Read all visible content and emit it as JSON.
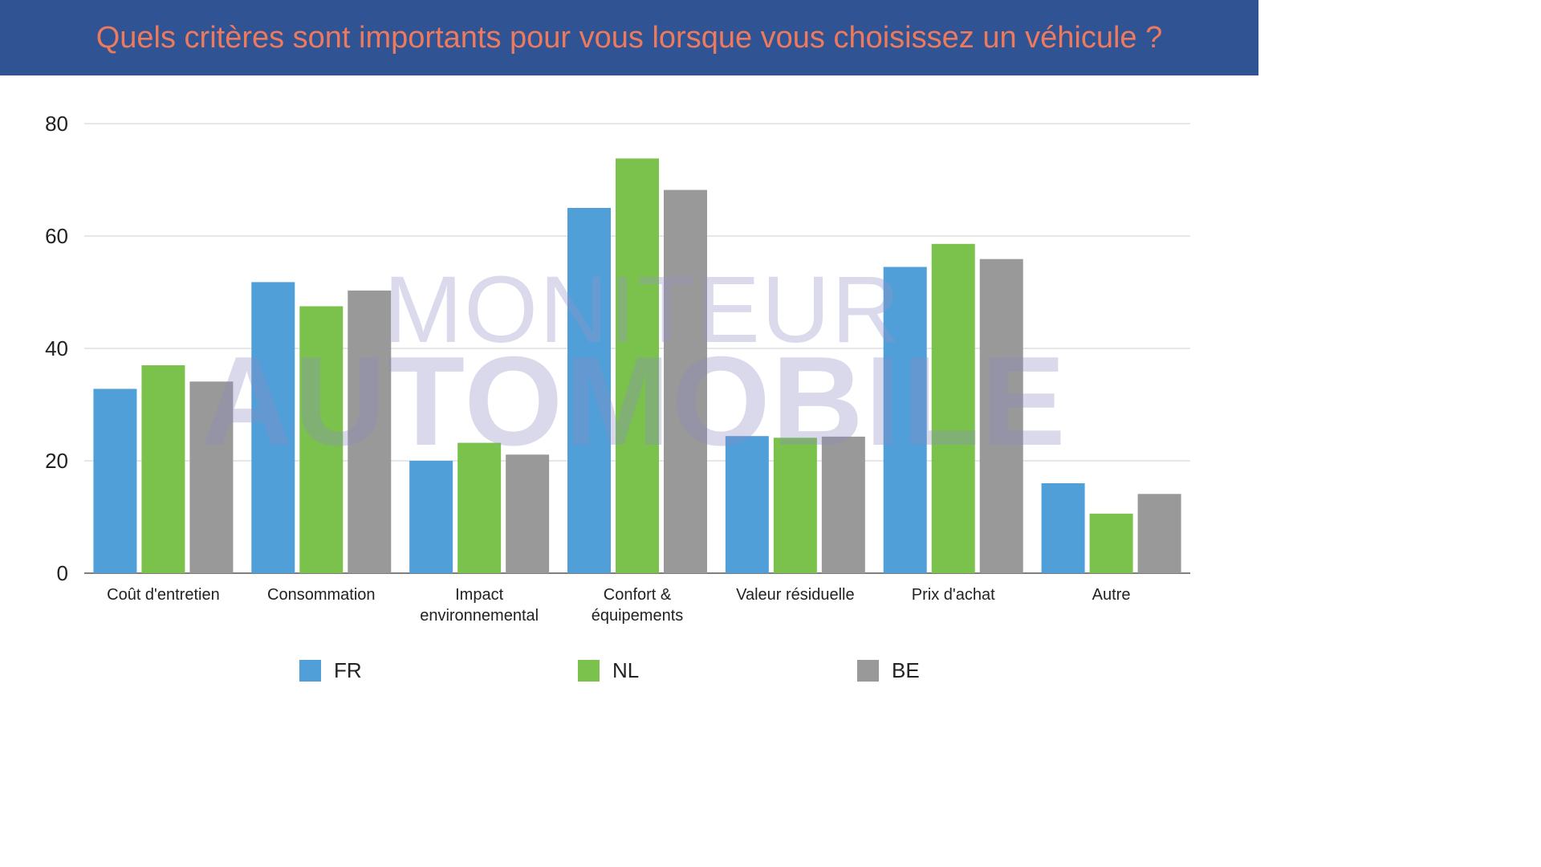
{
  "header": {
    "title": "Quels critères sont importants pour vous lorsque vous choisissez un véhicule ?"
  },
  "watermark": {
    "line1": "MONITEUR",
    "line2": "AUTOMOBILE"
  },
  "chart_data": {
    "type": "bar",
    "title": "Quels critères sont importants pour vous lorsque vous choisissez un véhicule ?",
    "categories": [
      [
        "Coût d'entretien"
      ],
      [
        "Consommation"
      ],
      [
        "Impact",
        "environnemental"
      ],
      [
        "Confort &",
        "équipements"
      ],
      [
        "Valeur résiduelle"
      ],
      [
        "Prix d'achat"
      ],
      [
        "Autre"
      ]
    ],
    "series": [
      {
        "name": "FR",
        "color": "#509fd8",
        "values": [
          32.8,
          51.8,
          20.0,
          65.0,
          24.4,
          54.5,
          16.0
        ]
      },
      {
        "name": "NL",
        "color": "#7bc24c",
        "values": [
          37.0,
          47.5,
          23.2,
          73.8,
          24.1,
          58.6,
          10.6
        ]
      },
      {
        "name": "BE",
        "color": "#999999",
        "values": [
          34.1,
          50.3,
          21.1,
          68.2,
          24.3,
          55.9,
          14.1
        ]
      }
    ],
    "ylim": [
      0,
      80
    ],
    "yticks": [
      0,
      20,
      40,
      60,
      80
    ],
    "xlabel": "",
    "ylabel": "",
    "grid": true,
    "legend": "bottom"
  }
}
